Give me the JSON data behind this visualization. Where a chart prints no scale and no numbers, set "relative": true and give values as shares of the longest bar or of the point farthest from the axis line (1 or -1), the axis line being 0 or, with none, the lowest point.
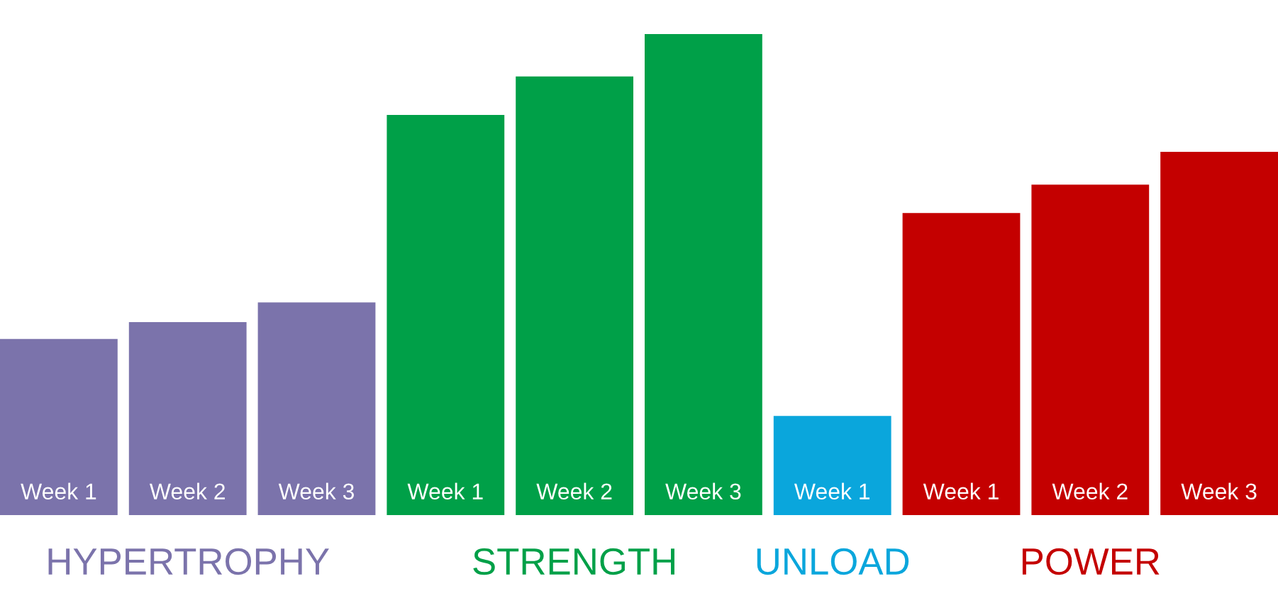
{
  "chart_data": {
    "type": "bar",
    "relative": true,
    "categories": [
      "Week 1",
      "Week 2",
      "Week 3",
      "Week 1",
      "Week 2",
      "Week 3",
      "Week 1",
      "Week 1",
      "Week 2",
      "Week 3"
    ],
    "values": [
      0.366,
      0.401,
      0.442,
      0.832,
      0.912,
      1.0,
      0.206,
      0.628,
      0.687,
      0.755
    ],
    "colors": [
      "#7b73ab",
      "#7b73ab",
      "#7b73ab",
      "#00a048",
      "#00a048",
      "#00a048",
      "#0aa6dc",
      "#c40000",
      "#c40000",
      "#c40000"
    ],
    "annotations": [
      "HYPERTROPHY",
      "STRENGTH",
      "UNLOAD",
      "POWER"
    ],
    "legend": false
  }
}
